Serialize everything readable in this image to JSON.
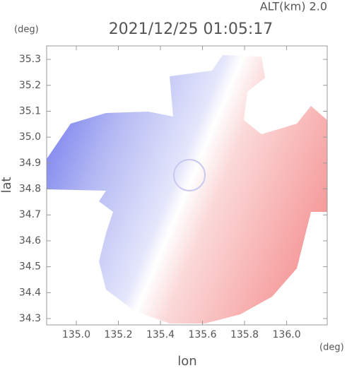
{
  "chart_data": {
    "type": "radar-image",
    "title": "2021/12/25 01:05:17",
    "subtitle": "ALT(km) 2.0",
    "x_label": "lon",
    "y_label": "lat",
    "x_unit": "(deg)",
    "y_unit": "(deg)",
    "xlim": [
      134.859,
      136.193
    ],
    "ylim": [
      34.2755,
      35.352
    ],
    "xticks": [
      {
        "value": 135.0,
        "label": "135.0"
      },
      135.2,
      135.4,
      135.6,
      135.8,
      {
        "value": 136.0,
        "label": "136.0"
      }
    ],
    "yticks": [
      34.3,
      34.4,
      34.5,
      34.6,
      34.7,
      34.8,
      34.9,
      {
        "value": 35.0,
        "label": "35.0"
      },
      35.1,
      35.2,
      35.3
    ]
  }
}
